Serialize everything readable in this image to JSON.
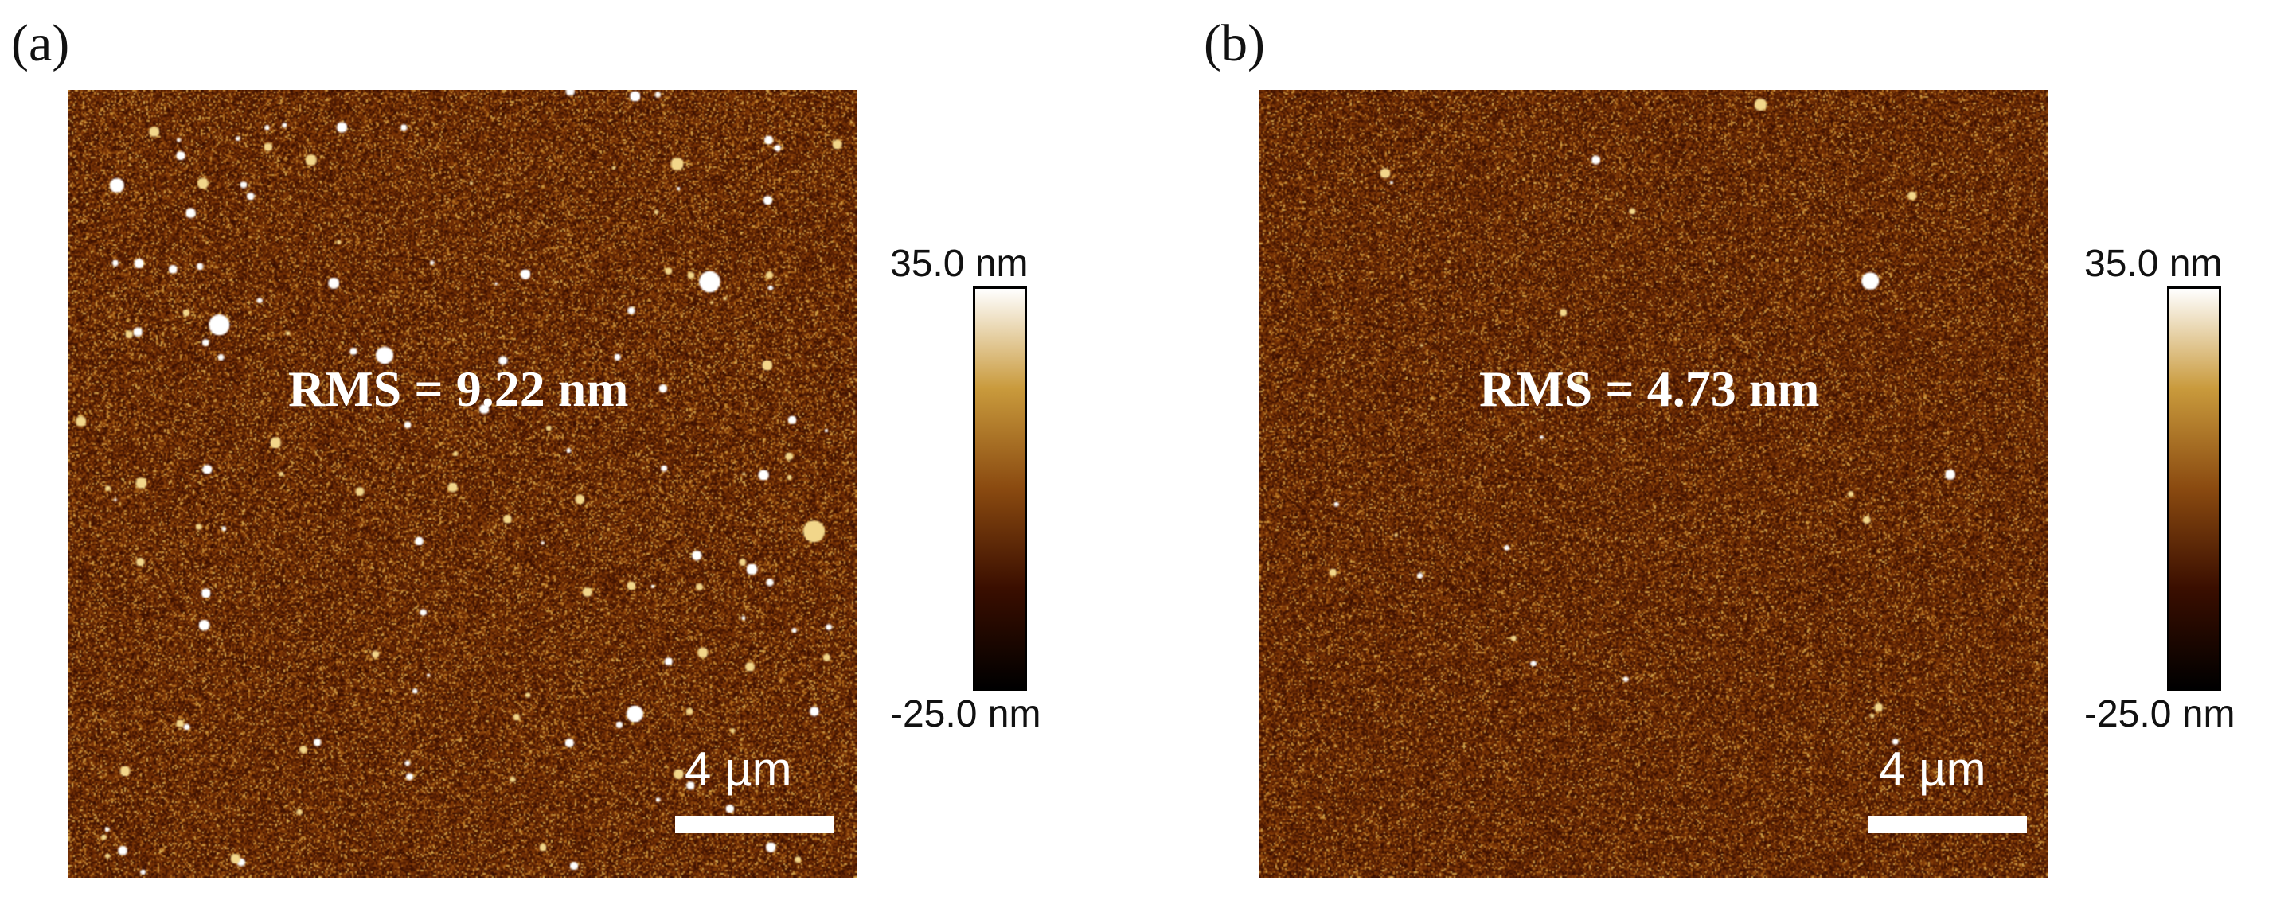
{
  "panels": [
    {
      "label": "(a)",
      "rms": "RMS = 9.22 nm",
      "scale_bar": "4 µm",
      "colorbar": {
        "max": "35.0 nm",
        "min": "-25.0 nm"
      }
    },
    {
      "label": "(b)",
      "rms": "RMS = 4.73 nm",
      "scale_bar": "4 µm",
      "colorbar": {
        "max": "35.0 nm",
        "min": "-25.0 nm"
      }
    }
  ],
  "colors": {
    "surface_base": "#7a3406",
    "colormap": [
      "#000000",
      "#3a0e00",
      "#8a4a10",
      "#c99a3c",
      "#ffffff"
    ]
  }
}
